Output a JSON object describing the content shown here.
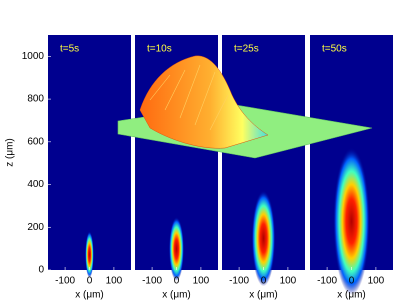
{
  "chart_data": [
    {
      "type": "heatmap",
      "title": "t=5s",
      "xlabel": "x (μm)",
      "ylabel": "z (μm)",
      "xlim": [
        -170,
        170
      ],
      "ylim": [
        0,
        1100
      ],
      "xticks": [
        -100,
        0,
        100
      ],
      "yticks": [
        0,
        200,
        400,
        600,
        800,
        1000
      ],
      "blob": {
        "z": [
          0,
          190
        ],
        "halfwidth": 8
      }
    },
    {
      "type": "heatmap",
      "title": "t=10s",
      "xlabel": "x (μm)",
      "xlim": [
        -170,
        170
      ],
      "ylim": [
        0,
        1100
      ],
      "xticks": [
        -100,
        0,
        100
      ],
      "blob": {
        "z": [
          0,
          260
        ],
        "halfwidth": 14
      }
    },
    {
      "type": "heatmap",
      "title": "t=25s",
      "xlabel": "x (μm)",
      "xlim": [
        -170,
        170
      ],
      "ylim": [
        0,
        1100
      ],
      "xticks": [
        -100,
        0,
        100
      ],
      "blob": {
        "z": [
          0,
          390
        ],
        "halfwidth": 22
      }
    },
    {
      "type": "heatmap",
      "title": "t=50s",
      "xlabel": "x (μm)",
      "xlim": [
        -170,
        170
      ],
      "ylim": [
        0,
        1100
      ],
      "xticks": [
        -100,
        0,
        100
      ],
      "blob": {
        "z": [
          0,
          600
        ],
        "halfwidth": 34
      }
    }
  ]
}
